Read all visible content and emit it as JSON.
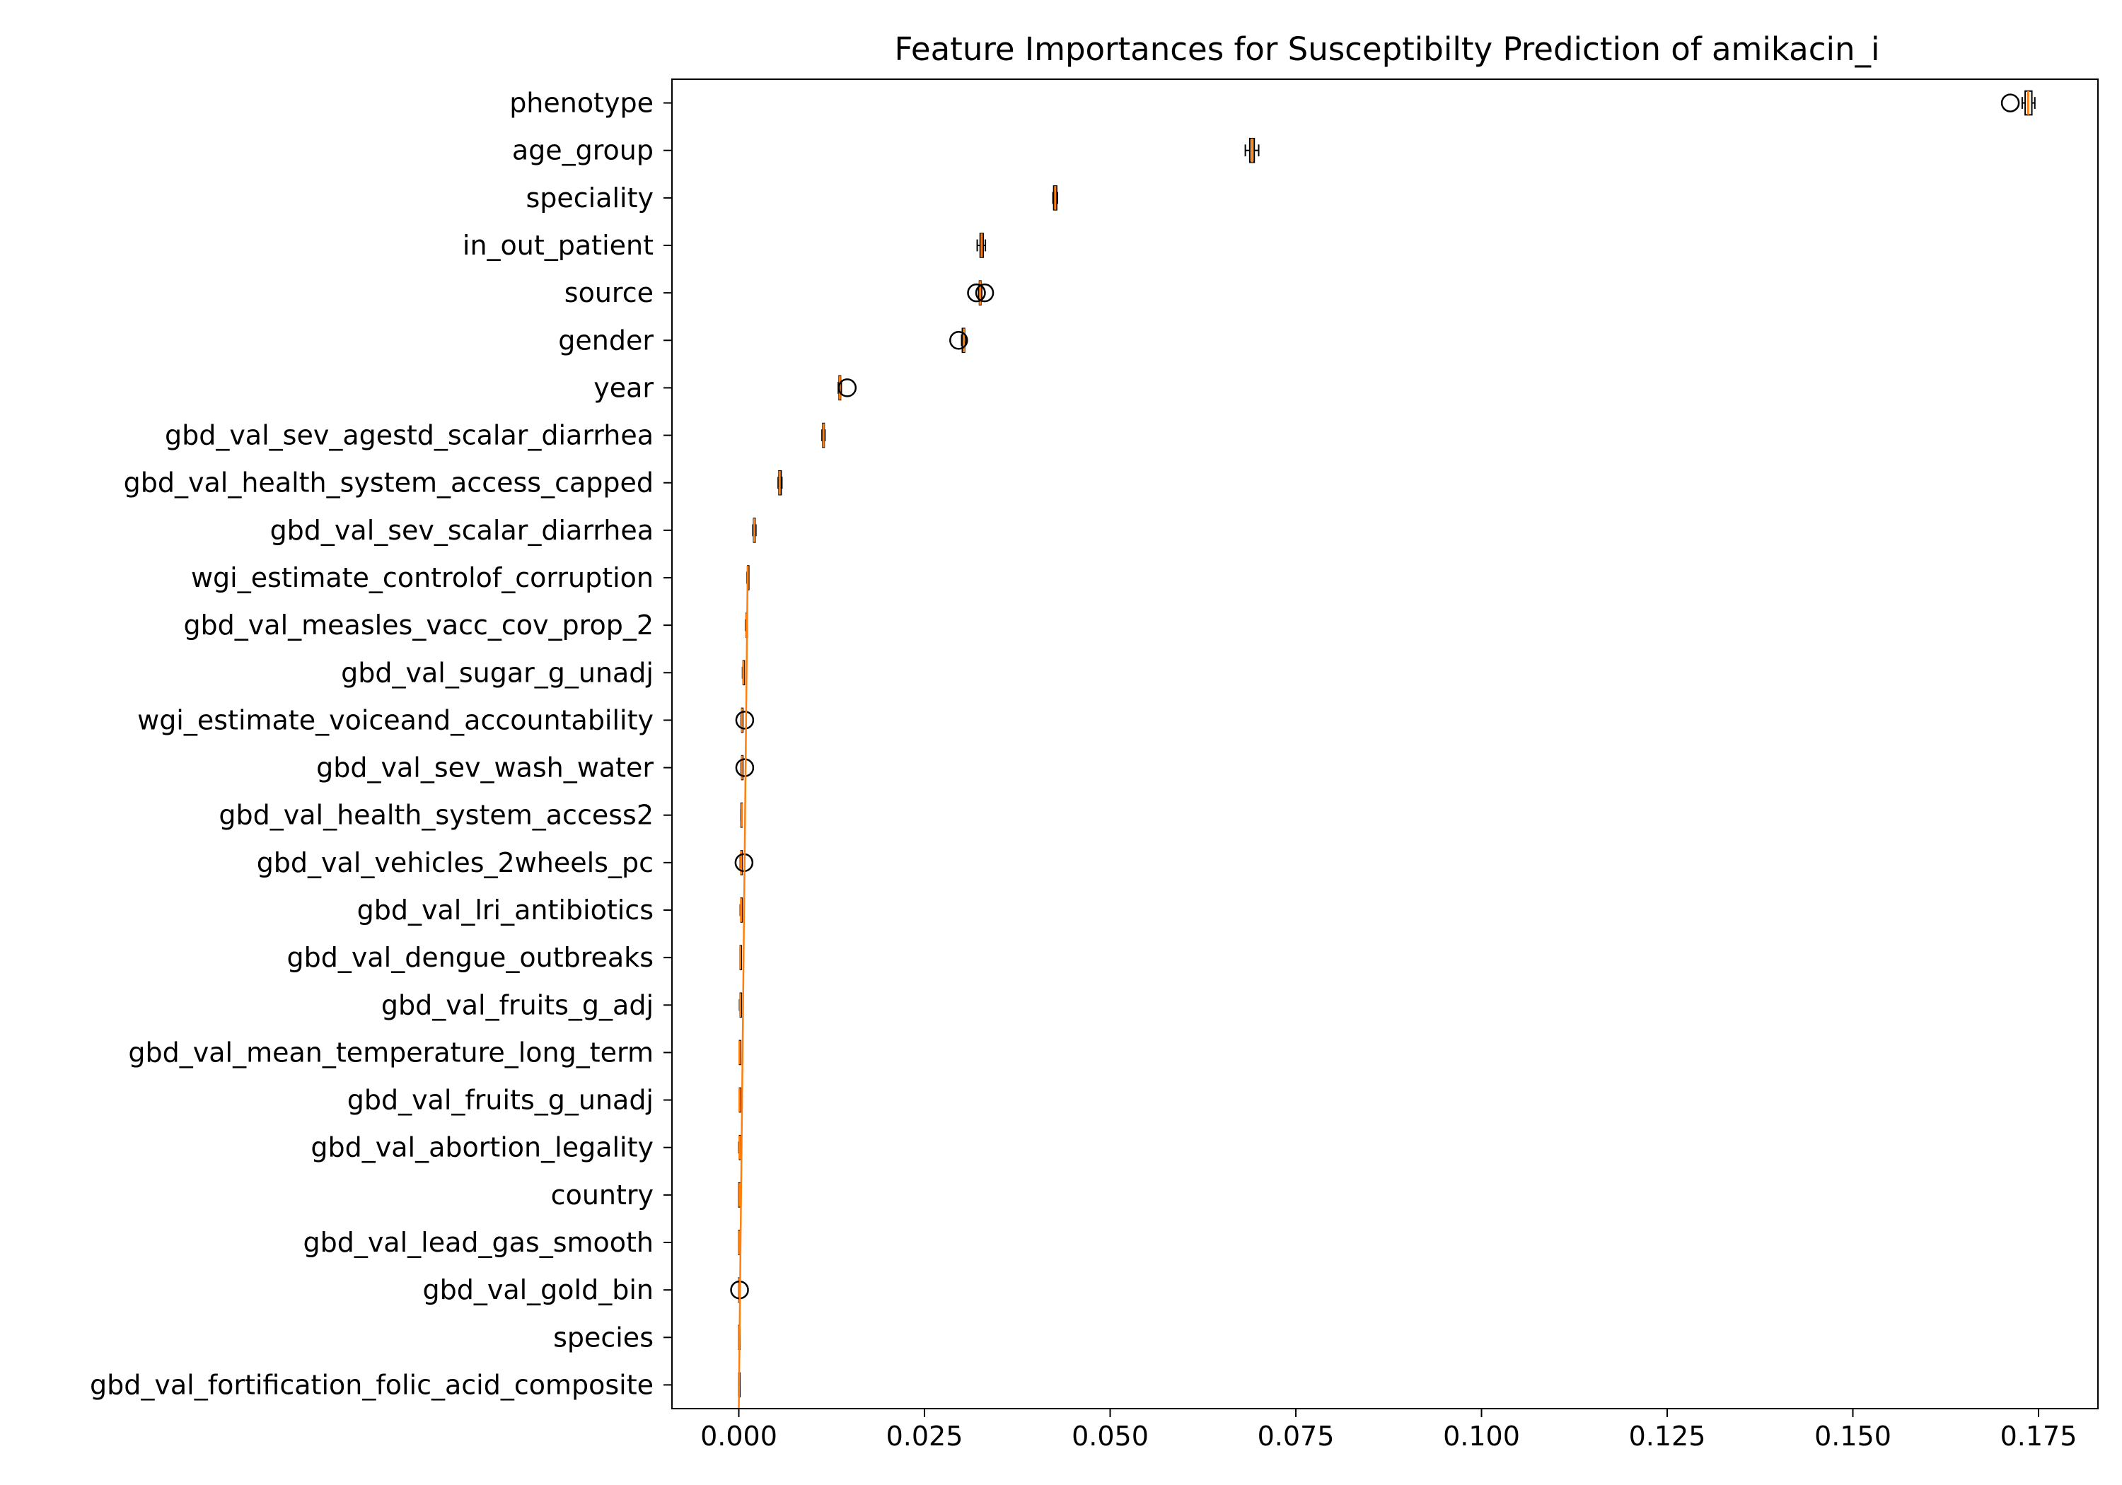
{
  "chart_data": {
    "type": "box",
    "orientation": "horizontal",
    "title": "Feature Importances for Susceptibilty Prediction of amikacin_i",
    "xlabel": "",
    "ylabel": "",
    "xlim": [
      -0.009,
      0.183
    ],
    "xticks": [
      0.0,
      0.025,
      0.05,
      0.075,
      0.1,
      0.125,
      0.15,
      0.175
    ],
    "xtick_labels": [
      "0.000",
      "0.025",
      "0.050",
      "0.075",
      "0.100",
      "0.125",
      "0.150",
      "0.175"
    ],
    "grid": false,
    "colors": {
      "box": "#000000",
      "median": "#ff7f0e",
      "background": "#ffffff"
    },
    "features": [
      {
        "name": "phenotype",
        "whislo": 0.1728,
        "q1": 0.1732,
        "med": 0.1736,
        "q3": 0.1741,
        "whishi": 0.1745,
        "fliers": [
          0.1712
        ]
      },
      {
        "name": "age_group",
        "whislo": 0.0682,
        "q1": 0.0688,
        "med": 0.0691,
        "q3": 0.0694,
        "whishi": 0.07,
        "fliers": []
      },
      {
        "name": "speciality",
        "whislo": 0.0423,
        "q1": 0.0424,
        "med": 0.0426,
        "q3": 0.0428,
        "whishi": 0.0429,
        "fliers": []
      },
      {
        "name": "in_out_patient",
        "whislo": 0.0321,
        "q1": 0.0325,
        "med": 0.0327,
        "q3": 0.0329,
        "whishi": 0.0332,
        "fliers": []
      },
      {
        "name": "source",
        "whislo": 0.0323,
        "q1": 0.0324,
        "med": 0.0325,
        "q3": 0.0326,
        "whishi": 0.0327,
        "fliers": [
          0.032,
          0.0331
        ]
      },
      {
        "name": "gender",
        "whislo": 0.03,
        "q1": 0.0301,
        "med": 0.0303,
        "q3": 0.0304,
        "whishi": 0.0305,
        "fliers": [
          0.0296
        ]
      },
      {
        "name": "year",
        "whislo": 0.0134,
        "q1": 0.0135,
        "med": 0.0136,
        "q3": 0.0137,
        "whishi": 0.0138,
        "fliers": [
          0.0146
        ]
      },
      {
        "name": "gbd_val_sev_agestd_scalar_diarrhea",
        "whislo": 0.0112,
        "q1": 0.0113,
        "med": 0.0114,
        "q3": 0.0115,
        "whishi": 0.0116,
        "fliers": []
      },
      {
        "name": "gbd_val_health_system_access_capped",
        "whislo": 0.0053,
        "q1": 0.0054,
        "med": 0.0055,
        "q3": 0.0057,
        "whishi": 0.0058,
        "fliers": []
      },
      {
        "name": "gbd_val_sev_scalar_diarrhea",
        "whislo": 0.0019,
        "q1": 0.002,
        "med": 0.0021,
        "q3": 0.0022,
        "whishi": 0.0023,
        "fliers": []
      },
      {
        "name": "wgi_estimate_controlof_corruption",
        "whislo": 0.0011,
        "q1": 0.0012,
        "med": 0.0012,
        "q3": 0.0013,
        "whishi": 0.0013,
        "fliers": []
      },
      {
        "name": "gbd_val_measles_vacc_cov_prop_2",
        "whislo": 0.0009,
        "q1": 0.001,
        "med": 0.001,
        "q3": 0.001,
        "whishi": 0.0011,
        "fliers": []
      },
      {
        "name": "gbd_val_sugar_g_unadj",
        "whislo": 0.0005,
        "q1": 0.0006,
        "med": 0.0006,
        "q3": 0.0007,
        "whishi": 0.0007,
        "fliers": []
      },
      {
        "name": "wgi_estimate_voiceand_accountability",
        "whislo": 0.0003,
        "q1": 0.0004,
        "med": 0.0004,
        "q3": 0.0004,
        "whishi": 0.0005,
        "fliers": [
          0.0008
        ]
      },
      {
        "name": "gbd_val_sev_wash_water",
        "whislo": 0.0003,
        "q1": 0.0004,
        "med": 0.0004,
        "q3": 0.0004,
        "whishi": 0.0005,
        "fliers": [
          0.0008
        ]
      },
      {
        "name": "gbd_val_health_system_access2",
        "whislo": 0.0003,
        "q1": 0.0003,
        "med": 0.0004,
        "q3": 0.0004,
        "whishi": 0.0004,
        "fliers": []
      },
      {
        "name": "gbd_val_vehicles_2wheels_pc",
        "whislo": 0.0002,
        "q1": 0.0003,
        "med": 0.0003,
        "q3": 0.0003,
        "whishi": 0.0004,
        "fliers": [
          0.0007
        ]
      },
      {
        "name": "gbd_val_lri_antibiotics",
        "whislo": 0.0002,
        "q1": 0.0003,
        "med": 0.0003,
        "q3": 0.0003,
        "whishi": 0.0004,
        "fliers": []
      },
      {
        "name": "gbd_val_dengue_outbreaks",
        "whislo": 0.0002,
        "q1": 0.0002,
        "med": 0.0002,
        "q3": 0.0003,
        "whishi": 0.0003,
        "fliers": []
      },
      {
        "name": "gbd_val_fruits_g_adj",
        "whislo": 0.0001,
        "q1": 0.0002,
        "med": 0.0002,
        "q3": 0.0002,
        "whishi": 0.0003,
        "fliers": []
      },
      {
        "name": "gbd_val_mean_temperature_long_term",
        "whislo": 0.0001,
        "q1": 0.0001,
        "med": 0.0001,
        "q3": 0.0002,
        "whishi": 0.0002,
        "fliers": []
      },
      {
        "name": "gbd_val_fruits_g_unadj",
        "whislo": 0.0001,
        "q1": 0.0001,
        "med": 0.0001,
        "q3": 0.0001,
        "whishi": 0.0002,
        "fliers": []
      },
      {
        "name": "gbd_val_abortion_legality",
        "whislo": 0.0,
        "q1": 0.0001,
        "med": 0.0001,
        "q3": 0.0001,
        "whishi": 0.0001,
        "fliers": []
      },
      {
        "name": "country",
        "whislo": 0.0,
        "q1": 0.0,
        "med": 0.0001,
        "q3": 0.0001,
        "whishi": 0.0001,
        "fliers": []
      },
      {
        "name": "gbd_val_lead_gas_smooth",
        "whislo": 0.0,
        "q1": 0.0,
        "med": 0.0,
        "q3": 0.0001,
        "whishi": 0.0001,
        "fliers": []
      },
      {
        "name": "gbd_val_gold_bin",
        "whislo": 0.0,
        "q1": 0.0,
        "med": 0.0,
        "q3": 0.0,
        "whishi": 0.0,
        "fliers": [
          0.0001
        ]
      },
      {
        "name": "species",
        "whislo": 0.0,
        "q1": 0.0,
        "med": 0.0,
        "q3": 0.0,
        "whishi": 0.0,
        "fliers": []
      },
      {
        "name": "gbd_val_fortification_folic_acid_composite",
        "whislo": 0.0,
        "q1": 0.0,
        "med": 0.0,
        "q3": 0.0,
        "whishi": 0.0,
        "fliers": []
      }
    ]
  }
}
